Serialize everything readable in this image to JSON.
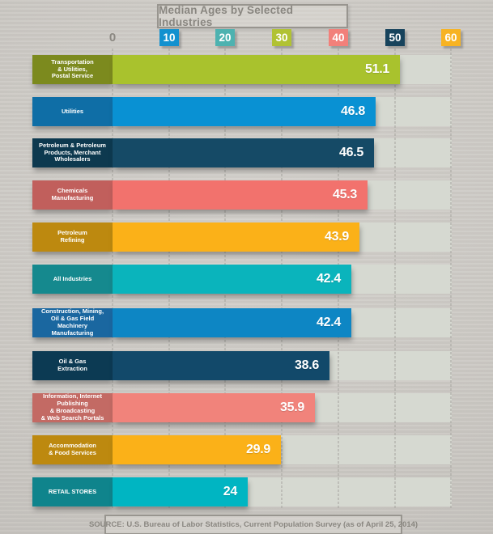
{
  "title": "Median Ages by Selected Industries",
  "source": "SOURCE: U.S. Bureau of Labor Statistics, Current Population Survey (as of April 25, 2014)",
  "colors": {
    "page_background": "#cbc8c3",
    "track": "#d6d9d1",
    "gridline": "#a5a49e",
    "title_text": "#898680",
    "source_text": "#8a8781",
    "value_text": "#ffffff"
  },
  "axis": {
    "ticks": [
      {
        "label": "0",
        "box": false,
        "color": "#8b8882"
      },
      {
        "label": "10",
        "box": true,
        "color": "#1291cf"
      },
      {
        "label": "20",
        "box": true,
        "color": "#4db2b0"
      },
      {
        "label": "30",
        "box": true,
        "color": "#b1c233"
      },
      {
        "label": "40",
        "box": true,
        "color": "#f2807a"
      },
      {
        "label": "50",
        "box": true,
        "color": "#17435c"
      },
      {
        "label": "60",
        "box": true,
        "color": "#f7b322"
      }
    ]
  },
  "bars": [
    {
      "category": "Transportation\n& Utilities,\nPostal Service",
      "value": 51.1,
      "display": "51.1",
      "label_bg": "#7c8a1e",
      "bar_bg": "#a9c22d"
    },
    {
      "category": "Utilities",
      "value": 46.8,
      "display": "46.8",
      "label_bg": "#0f6ea6",
      "bar_bg": "#0991d3"
    },
    {
      "category": "Petroleum & Petroleum\nProducts, Merchant\nWholesalers",
      "value": 46.5,
      "display": "46.5",
      "label_bg": "#0d394f",
      "bar_bg": "#154a66"
    },
    {
      "category": "Chemicals\nManufacturing",
      "value": 45.3,
      "display": "45.3",
      "label_bg": "#c15f5c",
      "bar_bg": "#f2726d"
    },
    {
      "category": "Petroleum\nRefining",
      "value": 43.9,
      "display": "43.9",
      "label_bg": "#bd890f",
      "bar_bg": "#fbb118"
    },
    {
      "category": "All Industries",
      "value": 42.4,
      "display": "42.4",
      "label_bg": "#15898e",
      "bar_bg": "#0ab4bc"
    },
    {
      "category": "Construction, Mining,\nOil & Gas Field\nMachinery\nManufacturing",
      "value": 42.4,
      "display": "42.4",
      "label_bg": "#1a67a0",
      "bar_bg": "#0d86c4"
    },
    {
      "category": "Oil & Gas\nExtraction",
      "value": 38.6,
      "display": "38.6",
      "label_bg": "#0c3a53",
      "bar_bg": "#12496a"
    },
    {
      "category": "Information, Internet\nPublishing\n& Broadcasting\n& Web Search Portals",
      "value": 35.9,
      "display": "35.9",
      "label_bg": "#c36a64",
      "bar_bg": "#f1837b"
    },
    {
      "category": "Accommodation\n& Food Services",
      "value": 29.9,
      "display": "29.9",
      "label_bg": "#bd890f",
      "bar_bg": "#fbb118"
    },
    {
      "category": "RETAIL STORES",
      "value": 24,
      "display": "24",
      "label_bg": "#0f848c",
      "bar_bg": "#00b5c2"
    }
  ],
  "chart_data": {
    "type": "bar",
    "orientation": "horizontal",
    "title": "Median Ages by Selected Industries",
    "categories": [
      "Transportation & Utilities, Postal Service",
      "Utilities",
      "Petroleum & Petroleum Products, Merchant Wholesalers",
      "Chemicals Manufacturing",
      "Petroleum Refining",
      "All Industries",
      "Construction, Mining, Oil & Gas Field Machinery Manufacturing",
      "Oil & Gas Extraction",
      "Information, Internet Publishing & Broadcasting & Web Search Portals",
      "Accommodation & Food Services",
      "Retail Stores"
    ],
    "values": [
      51.1,
      46.8,
      46.5,
      45.3,
      43.9,
      42.4,
      42.4,
      38.6,
      35.9,
      29.9,
      24
    ],
    "xlim": [
      0,
      60
    ],
    "xticks": [
      0,
      10,
      20,
      30,
      40,
      50,
      60
    ],
    "grid": "dashed-vertical",
    "legend": false,
    "source": "SOURCE: U.S. Bureau of Labor Statistics, Current Population Survey (as of April 25, 2014)"
  }
}
